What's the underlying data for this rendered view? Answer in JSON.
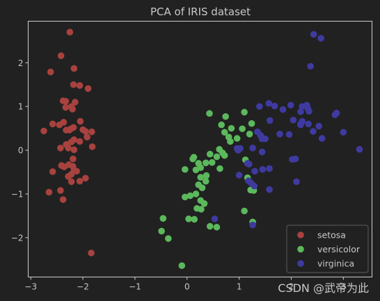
{
  "chart_data": {
    "type": "scatter",
    "title": "PCA of IRIS dataset",
    "xlabel": "",
    "ylabel": "",
    "xlim": [
      -3.05,
      3.55
    ],
    "ylim": [
      -2.9,
      2.95
    ],
    "x_ticks": [
      -3,
      -2,
      -1,
      0,
      1,
      2,
      3
    ],
    "y_ticks": [
      -2,
      -1,
      0,
      1,
      2
    ],
    "grid": false,
    "legend_position": "lower-right",
    "watermark": "CSDN @武帝为此",
    "colors": {
      "background": "#212121",
      "axes": "#cfcfcf",
      "text": "#c8c8c8"
    },
    "series": [
      {
        "name": "setosa",
        "color": "#a8423f",
        "points": [
          [
            -2.25,
            2.7
          ],
          [
            -2.42,
            2.16
          ],
          [
            -2.62,
            1.79
          ],
          [
            -2.17,
            1.87
          ],
          [
            -2.18,
            1.5
          ],
          [
            -2.06,
            1.48
          ],
          [
            -1.9,
            1.41
          ],
          [
            -2.38,
            1.13
          ],
          [
            -2.33,
            1.12
          ],
          [
            -2.15,
            1.1
          ],
          [
            -2.22,
            1.0
          ],
          [
            -2.2,
            0.94
          ],
          [
            -2.33,
            0.98
          ],
          [
            -2.75,
            0.44
          ],
          [
            -2.58,
            0.6
          ],
          [
            -2.45,
            0.58
          ],
          [
            -2.37,
            0.64
          ],
          [
            -2.26,
            0.46
          ],
          [
            -2.23,
            0.49
          ],
          [
            -2.18,
            0.52
          ],
          [
            -2.05,
            0.66
          ],
          [
            -2.0,
            0.47
          ],
          [
            -1.95,
            0.43
          ],
          [
            -1.83,
            0.42
          ],
          [
            -1.92,
            0.3
          ],
          [
            -2.32,
            0.46
          ],
          [
            -2.43,
            0.05
          ],
          [
            -2.32,
            0.13
          ],
          [
            -2.22,
            0.19
          ],
          [
            -2.17,
            0.24
          ],
          [
            -2.06,
            0.2
          ],
          [
            -2.28,
            0.05
          ],
          [
            -2.17,
            0.01
          ],
          [
            -1.82,
            0.08
          ],
          [
            -2.3,
            0.13
          ],
          [
            -2.19,
            -0.2
          ],
          [
            -2.58,
            -0.49
          ],
          [
            -2.41,
            -0.35
          ],
          [
            -2.36,
            -0.38
          ],
          [
            -2.27,
            -0.33
          ],
          [
            -2.19,
            -0.37
          ],
          [
            -2.17,
            -0.46
          ],
          [
            -2.12,
            -0.48
          ],
          [
            -2.22,
            -0.55
          ],
          [
            -2.28,
            -0.6
          ],
          [
            -1.95,
            -0.64
          ],
          [
            -2.06,
            -0.71
          ],
          [
            -2.22,
            -0.72
          ],
          [
            -2.43,
            -0.92
          ],
          [
            -2.65,
            -0.96
          ],
          [
            -2.38,
            -1.13
          ],
          [
            -1.84,
            -2.35
          ]
        ]
      },
      {
        "name": "versicolor",
        "color": "#5cb85c",
        "points": [
          [
            0.43,
            0.84
          ],
          [
            1.1,
            0.87
          ],
          [
            0.74,
            0.77
          ],
          [
            1.24,
            0.61
          ],
          [
            1.06,
            0.49
          ],
          [
            0.66,
            0.58
          ],
          [
            0.72,
            0.41
          ],
          [
            0.85,
            0.5
          ],
          [
            0.8,
            0.3
          ],
          [
            0.83,
            0.2
          ],
          [
            0.96,
            0.27
          ],
          [
            1.2,
            0.37
          ],
          [
            0.62,
            0.02
          ],
          [
            0.68,
            -0.06
          ],
          [
            0.72,
            -0.12
          ],
          [
            0.44,
            -0.09
          ],
          [
            0.57,
            -0.15
          ],
          [
            0.13,
            -0.16
          ],
          [
            0.11,
            -0.2
          ],
          [
            0.22,
            -0.3
          ],
          [
            0.26,
            -0.4
          ],
          [
            0.36,
            -0.29
          ],
          [
            0.48,
            -0.28
          ],
          [
            -0.04,
            -0.44
          ],
          [
            0.17,
            -0.45
          ],
          [
            0.37,
            -0.58
          ],
          [
            0.63,
            -0.42
          ],
          [
            0.26,
            -0.62
          ],
          [
            0.22,
            -0.79
          ],
          [
            0.29,
            -0.86
          ],
          [
            0.36,
            -0.71
          ],
          [
            0.17,
            -1.0
          ],
          [
            0.06,
            -1.04
          ],
          [
            -0.04,
            -1.07
          ],
          [
            0.26,
            -1.15
          ],
          [
            0.33,
            -1.22
          ],
          [
            0.19,
            -1.33
          ],
          [
            0.27,
            -1.35
          ],
          [
            0.03,
            -1.57
          ],
          [
            0.14,
            -1.58
          ],
          [
            0.44,
            -1.74
          ],
          [
            0.57,
            -1.76
          ],
          [
            1.1,
            -1.39
          ],
          [
            1.16,
            -0.63
          ],
          [
            1.22,
            -0.91
          ],
          [
            1.28,
            -0.92
          ],
          [
            1.26,
            -1.64
          ],
          [
            -0.46,
            -1.56
          ],
          [
            -0.49,
            -1.85
          ],
          [
            -0.36,
            -2.02
          ],
          [
            -0.1,
            -2.64
          ],
          [
            1.12,
            -0.22
          ]
        ]
      },
      {
        "name": "virginica",
        "color": "#3f3aa0",
        "points": [
          [
            2.43,
            2.65
          ],
          [
            2.57,
            2.56
          ],
          [
            2.37,
            1.92
          ],
          [
            1.99,
            1.03
          ],
          [
            1.68,
            1.01
          ],
          [
            1.57,
            1.07
          ],
          [
            2.21,
            1.0
          ],
          [
            2.3,
            1.03
          ],
          [
            2.32,
            0.95
          ],
          [
            2.34,
            0.89
          ],
          [
            2.18,
            0.88
          ],
          [
            1.84,
            0.93
          ],
          [
            1.39,
            1.0
          ],
          [
            2.84,
            0.81
          ],
          [
            2.87,
            0.85
          ],
          [
            2.04,
            0.69
          ],
          [
            2.18,
            0.58
          ],
          [
            2.21,
            0.66
          ],
          [
            2.18,
            0.6
          ],
          [
            2.33,
            0.6
          ],
          [
            2.53,
            0.55
          ],
          [
            2.42,
            0.43
          ],
          [
            2.59,
            0.27
          ],
          [
            3.0,
            0.41
          ],
          [
            3.31,
            0.02
          ],
          [
            1.59,
            0.68
          ],
          [
            1.35,
            0.42
          ],
          [
            1.41,
            0.34
          ],
          [
            1.5,
            0.26
          ],
          [
            1.44,
            0.26
          ],
          [
            1.96,
            0.36
          ],
          [
            1.78,
            0.37
          ],
          [
            0.96,
            0.04
          ],
          [
            1.02,
            0.04
          ],
          [
            0.98,
            0.0
          ],
          [
            1.26,
            0.05
          ],
          [
            1.44,
            -0.04
          ],
          [
            1.16,
            -0.3
          ],
          [
            1.19,
            -0.32
          ],
          [
            2.08,
            -0.2
          ],
          [
            2.02,
            -0.21
          ],
          [
            1.3,
            -0.48
          ],
          [
            1.45,
            -0.44
          ],
          [
            1.58,
            -0.42
          ],
          [
            1.0,
            -0.57
          ],
          [
            1.23,
            -0.75
          ],
          [
            1.18,
            -0.7
          ],
          [
            1.58,
            -0.9
          ],
          [
            1.29,
            -0.82
          ],
          [
            2.1,
            -0.72
          ],
          [
            0.53,
            -1.57
          ],
          [
            1.26,
            -1.71
          ]
        ]
      }
    ]
  }
}
